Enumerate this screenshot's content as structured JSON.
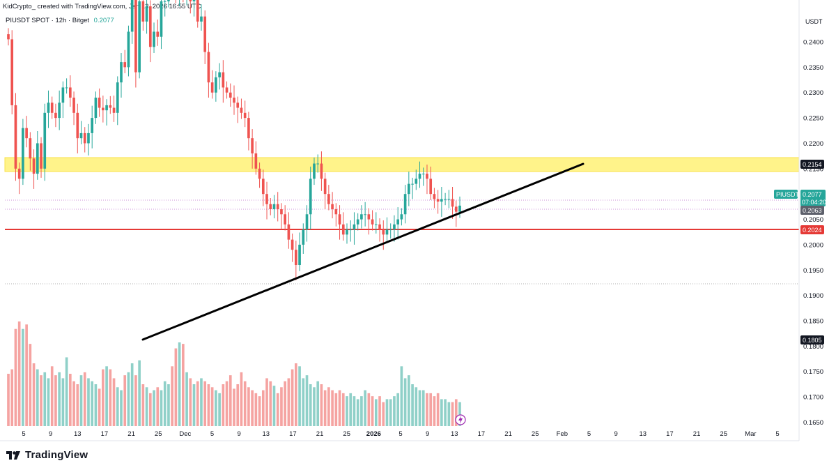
{
  "header": {
    "text": "KidCrypto_ created with TradingView.com, Jan 13, 2026 16:55 UTC"
  },
  "symbol": {
    "text": "PIUSDT SPOT · 12h · Bitget",
    "last_price": "0.2077"
  },
  "axis": {
    "currency": "USDT"
  },
  "branding": {
    "logo_text": "TradingView"
  },
  "tags": {
    "zone": "0.2154",
    "symbol_name": "PIUSDT",
    "last": "0.2077",
    "countdown": "07:04:20",
    "level_mid": "0.2063",
    "support": "0.2024",
    "low_marker": "0.1805"
  },
  "colors": {
    "up": "#26a69a",
    "down": "#ef5350",
    "vol_up": "#8fd0c8",
    "vol_down": "#f5a3a1",
    "zone": "#fff176",
    "support": "#e53935",
    "trendline": "#000000",
    "dotted": "#ce93d8"
  },
  "chart_data": {
    "type": "candlestick",
    "timeframe": "12h",
    "title": "PIUSDT SPOT · 12h · Bitget",
    "ylim": [
      0.163,
      0.2455
    ],
    "y_ticks": [
      "0.2400",
      "0.2350",
      "0.2300",
      "0.2250",
      "0.2200",
      "0.2150",
      "0.2100",
      "0.2050",
      "0.2000",
      "0.1950",
      "0.1900",
      "0.1850",
      "0.1800",
      "0.1750",
      "0.1700",
      "0.1650"
    ],
    "x_ticks": [
      "5",
      "9",
      "13",
      "17",
      "21",
      "25",
      "Dec",
      "5",
      "9",
      "13",
      "17",
      "21",
      "25",
      "2026",
      "5",
      "9",
      "13",
      "17",
      "21",
      "25",
      "Feb",
      "5",
      "9",
      "13",
      "17",
      "21",
      "25",
      "Mar",
      "5"
    ],
    "closes": [
      0.2405,
      0.2275,
      0.215,
      0.213,
      0.223,
      0.221,
      0.217,
      0.214,
      0.22,
      0.215,
      0.226,
      0.228,
      0.226,
      0.225,
      0.228,
      0.231,
      0.231,
      0.229,
      0.226,
      0.221,
      0.222,
      0.22,
      0.222,
      0.225,
      0.229,
      0.227,
      0.2265,
      0.2275,
      0.227,
      0.226,
      0.232,
      0.236,
      0.235,
      0.242,
      0.25,
      0.234,
      0.248,
      0.244,
      0.247,
      0.239,
      0.242,
      0.241,
      0.248,
      0.248,
      0.253,
      0.251,
      0.25,
      0.25,
      0.249,
      0.25,
      0.248,
      0.25,
      0.244,
      0.245,
      0.238,
      0.232,
      0.23,
      0.233,
      0.234,
      0.231,
      0.23,
      0.229,
      0.228,
      0.227,
      0.226,
      0.225,
      0.221,
      0.218,
      0.215,
      0.213,
      0.21,
      0.208,
      0.207,
      0.208,
      0.207,
      0.206,
      0.204,
      0.201,
      0.199,
      0.196,
      0.2,
      0.203,
      0.206,
      0.213,
      0.216,
      0.216,
      0.213,
      0.21,
      0.208,
      0.207,
      0.206,
      0.204,
      0.202,
      0.203,
      0.203,
      0.204,
      0.205,
      0.206,
      0.206,
      0.205,
      0.204,
      0.204,
      0.203,
      0.202,
      0.203,
      0.203,
      0.204,
      0.205,
      0.206,
      0.21,
      0.212,
      0.212,
      0.213,
      0.214,
      0.214,
      0.213,
      0.21,
      0.209,
      0.2085,
      0.209,
      0.209,
      0.209,
      0.2075,
      0.2065,
      0.2077
    ],
    "volumes": [
      3.5,
      3.8,
      6.5,
      7.0,
      6.5,
      6.8,
      5.5,
      4.2,
      3.8,
      3.4,
      3.6,
      3.2,
      4.0,
      3.4,
      3.6,
      3.2,
      4.6,
      3.5,
      3.0,
      2.8,
      3.4,
      3.6,
      3.2,
      3.0,
      2.8,
      2.5,
      3.8,
      4.0,
      3.8,
      3.2,
      2.6,
      2.4,
      3.4,
      3.6,
      4.2,
      3.4,
      4.4,
      2.8,
      2.6,
      2.2,
      2.4,
      2.6,
      2.4,
      3.0,
      2.8,
      4.0,
      5.2,
      5.6,
      5.5,
      3.6,
      3.2,
      2.8,
      3.0,
      3.2,
      3.0,
      2.8,
      2.6,
      2.4,
      2.2,
      2.8,
      3.0,
      3.4,
      2.5,
      2.8,
      3.6,
      3.0,
      2.6,
      2.4,
      2.2,
      2.0,
      2.4,
      3.2,
      3.0,
      2.7,
      2.2,
      2.6,
      3.0,
      3.2,
      3.8,
      4.2,
      4.0,
      3.2,
      3.4,
      2.8,
      2.6,
      3.0,
      2.8,
      2.4,
      2.6,
      2.4,
      2.2,
      2.4,
      2.2,
      2.0,
      2.2,
      2.0,
      1.8,
      2.0,
      2.4,
      2.2,
      2.0,
      1.8,
      2.0,
      1.6,
      1.8,
      1.8,
      2.0,
      2.2,
      4.0,
      3.2,
      3.4,
      2.8,
      2.6,
      2.4,
      2.4,
      2.2,
      2.2,
      2.0,
      2.2,
      1.8,
      1.8,
      1.6,
      1.6,
      1.8,
      1.6
    ]
  }
}
